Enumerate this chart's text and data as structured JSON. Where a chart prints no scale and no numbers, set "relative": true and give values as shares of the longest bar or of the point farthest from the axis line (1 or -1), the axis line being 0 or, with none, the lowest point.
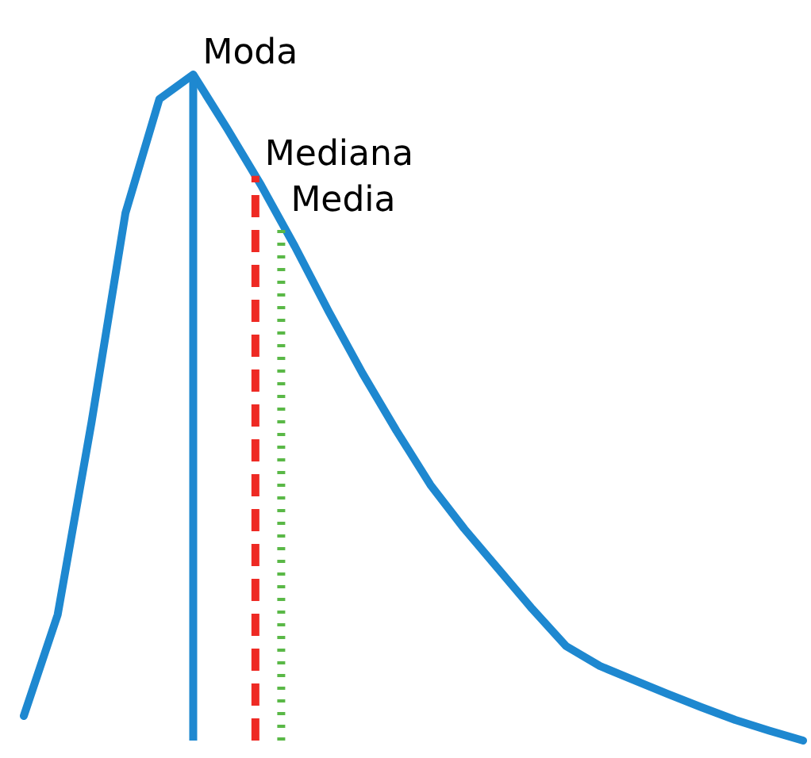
{
  "chart_data": {
    "type": "line",
    "relative": true,
    "line_style": "solid",
    "categories": [
      null,
      null,
      null,
      null,
      null,
      null,
      null,
      null,
      null,
      null,
      null,
      null,
      null,
      null,
      null,
      null,
      null,
      null,
      null,
      null,
      null,
      null,
      null,
      null
    ],
    "series": [
      {
        "color": "#1e88d0",
        "values": [
          0.037,
          0.189,
          0.478,
          0.792,
          0.963,
          1.0,
          0.919,
          0.834,
          0.742,
          0.644,
          0.551,
          0.465,
          0.384,
          0.318,
          0.258,
          0.198,
          0.142,
          0.112,
          0.091,
          0.07,
          0.05,
          0.031,
          0.015,
          0
        ]
      }
    ],
    "annotations": [
      "Moda",
      "Mediana",
      "Media"
    ]
  }
}
